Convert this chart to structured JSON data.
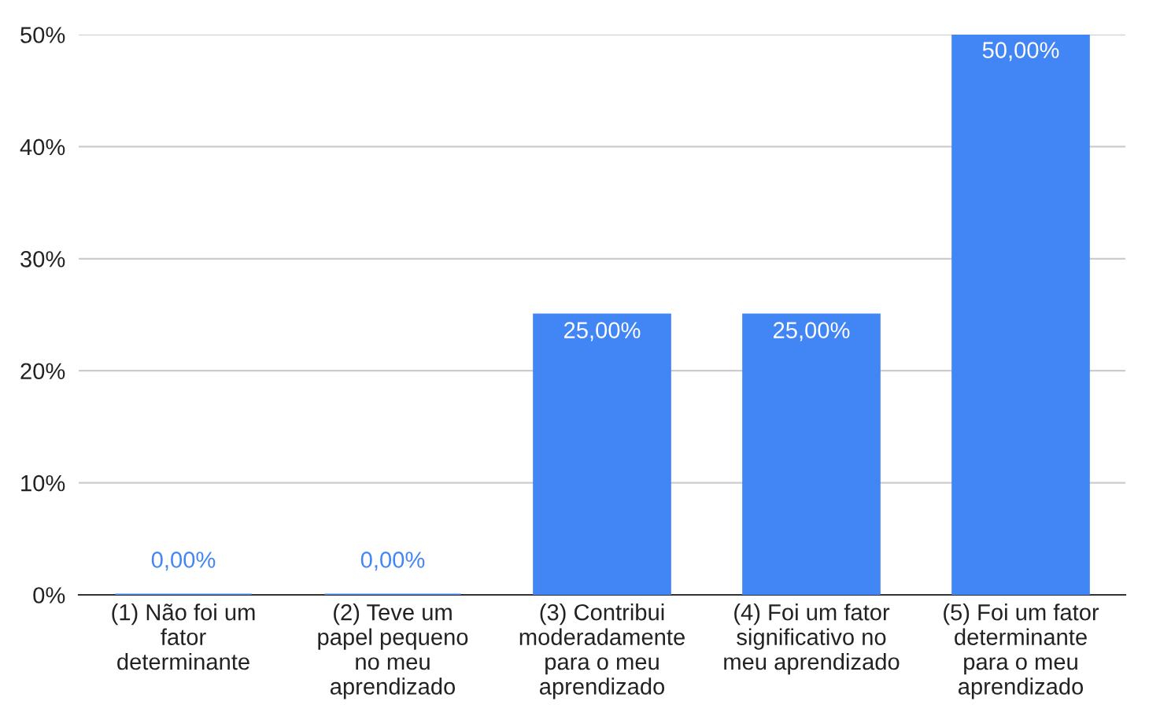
{
  "chart_data": {
    "type": "bar",
    "categories": [
      "(1) Não foi um\nfator\ndeterminante",
      "(2) Teve um\npapel pequeno\nno meu\naprendizado",
      "(3) Contribui\nmoderadamente\npara o meu\naprendizado",
      "(4) Foi um fator\nsignificativo no\nmeu aprendizado",
      "(5) Foi um fator\ndeterminante\npara o meu\naprendizado"
    ],
    "values": [
      0,
      0,
      25,
      25,
      50
    ],
    "value_labels": [
      "0,00%",
      "0,00%",
      "25,00%",
      "25,00%",
      "50,00%"
    ],
    "color": "#4285f4",
    "ylim": [
      0,
      50
    ],
    "yticks": [
      {
        "value": 0,
        "label": "0%"
      },
      {
        "value": 10,
        "label": "10%"
      },
      {
        "value": 20,
        "label": "20%"
      },
      {
        "value": 30,
        "label": "30%"
      },
      {
        "value": 40,
        "label": "40%"
      },
      {
        "value": 50,
        "label": "50%"
      }
    ],
    "grid": "y"
  }
}
